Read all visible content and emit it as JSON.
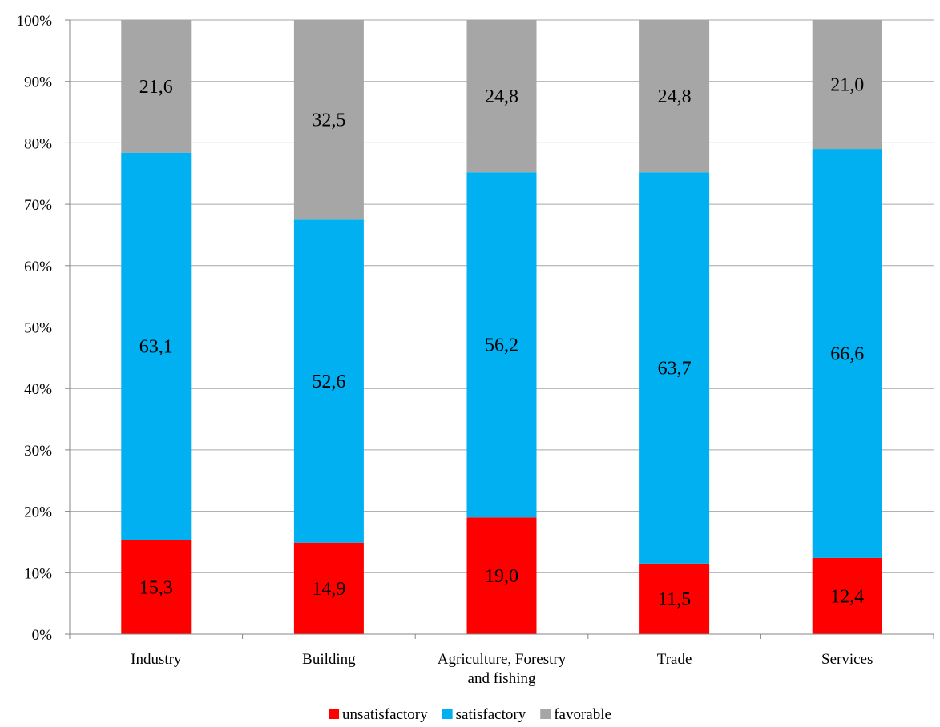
{
  "chart_data": {
    "type": "bar",
    "stacked": true,
    "percent_axis": true,
    "categories": [
      [
        "Industry"
      ],
      [
        "Building"
      ],
      [
        "Agriculture, Forestry",
        "and fishing"
      ],
      [
        "Trade"
      ],
      [
        "Services"
      ]
    ],
    "series": [
      {
        "name": "unsatisfactory",
        "color": "#ff0000",
        "values": [
          15.3,
          14.9,
          19.0,
          11.5,
          12.4
        ],
        "labels": [
          "15,3",
          "14,9",
          "19,0",
          "11,5",
          "12,4"
        ]
      },
      {
        "name": "satisfactory",
        "color": "#00b0f0",
        "values": [
          63.1,
          52.6,
          56.2,
          63.7,
          66.6
        ],
        "labels": [
          "63,1",
          "52,6",
          "56,2",
          "63,7",
          "66,6"
        ]
      },
      {
        "name": "favorable",
        "color": "#a6a6a6",
        "values": [
          21.6,
          32.5,
          24.8,
          24.8,
          21.0
        ],
        "labels": [
          "21,6",
          "32,5",
          "24,8",
          "24,8",
          "21,0"
        ]
      }
    ],
    "ylim": [
      0,
      100
    ],
    "yticks": [
      "0%",
      "10%",
      "20%",
      "30%",
      "40%",
      "50%",
      "60%",
      "70%",
      "80%",
      "90%",
      "100%"
    ],
    "grid": true,
    "legend": "bottom",
    "title": "",
    "xlabel": "",
    "ylabel": ""
  }
}
